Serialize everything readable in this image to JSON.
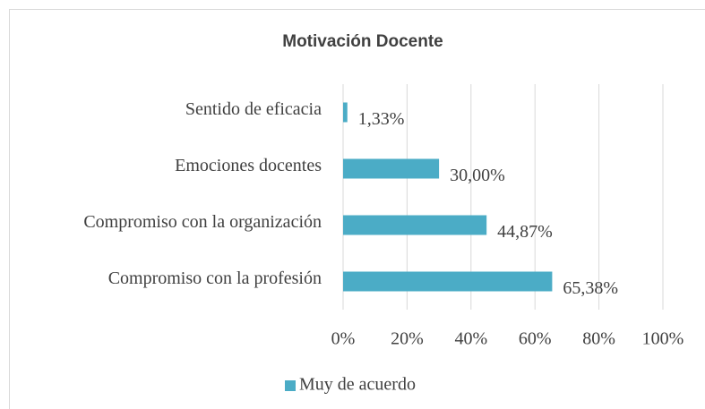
{
  "chart_data": {
    "type": "bar",
    "orientation": "horizontal",
    "title": "Motivación Docente",
    "categories": [
      "Sentido de eficacia",
      "Emociones docentes",
      "Compromiso con la organización",
      "Compromiso con la profesión"
    ],
    "series": [
      {
        "name": "Muy de acuerdo",
        "color": "#4bacc6",
        "values": [
          1.33,
          30,
          44.87,
          65.38
        ],
        "value_labels": [
          "1,33%",
          "30,00%",
          "44,87%",
          "65,38%"
        ]
      }
    ],
    "xlim": [
      0,
      100
    ],
    "xticks": [
      {
        "value": 0,
        "label": "0%"
      },
      {
        "value": 20,
        "label": "20%"
      },
      {
        "value": 40,
        "label": "40%"
      },
      {
        "value": 60,
        "label": "60%"
      },
      {
        "value": 80,
        "label": "80%"
      },
      {
        "value": 100,
        "label": "100%"
      }
    ],
    "grid": true,
    "legend": "bottom"
  }
}
